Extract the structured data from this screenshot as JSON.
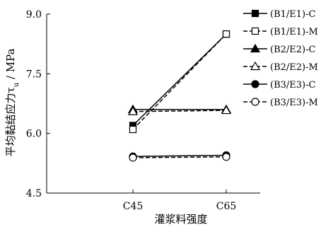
{
  "chart_data": {
    "type": "line",
    "categories": [
      "C45",
      "C65"
    ],
    "xlabel": "灌浆料强度",
    "ylabel": "平均黏结应力τu / MPa",
    "ylim": [
      4.5,
      9.0
    ],
    "yticks": [
      "4.5",
      "6.0",
      "7.5",
      "9.0"
    ],
    "grid": false,
    "legend_position": "right",
    "series": [
      {
        "name": "(B1/E1)-C",
        "values": [
          6.2,
          8.5
        ],
        "marker": "square-filled",
        "line": "solid"
      },
      {
        "name": "(B1/E1)-M",
        "values": [
          6.1,
          8.5
        ],
        "marker": "square-open",
        "line": "dashed"
      },
      {
        "name": "(B2/E2)-C",
        "values": [
          6.6,
          6.6
        ],
        "marker": "triangle-filled",
        "line": "solid"
      },
      {
        "name": "(B2/E2)-M",
        "values": [
          6.55,
          6.58
        ],
        "marker": "triangle-open",
        "line": "dashed"
      },
      {
        "name": "(B3/E3)-C",
        "values": [
          5.42,
          5.45
        ],
        "marker": "circle-filled",
        "line": "solid"
      },
      {
        "name": "(B3/E3)-M",
        "values": [
          5.39,
          5.41
        ],
        "marker": "circle-open",
        "line": "dashed"
      }
    ],
    "colors": {
      "line": "#000000",
      "open_fill": "#ffffff"
    }
  }
}
